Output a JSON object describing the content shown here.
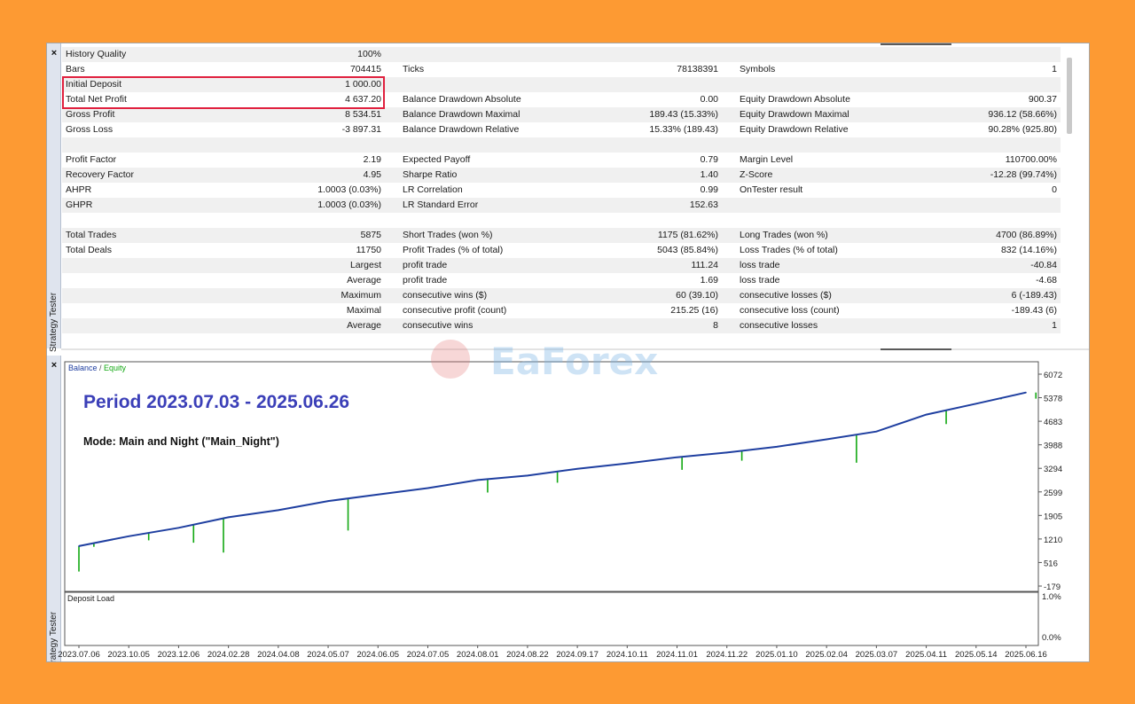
{
  "panel_title": "Strategy Tester",
  "close_icon": "×",
  "watermark_text": "EaForex",
  "report": {
    "rows": [
      {
        "l1": "History Quality",
        "v1": "100%",
        "l2": "",
        "v2": "",
        "l3": "",
        "v3": "",
        "quality_bar": true
      },
      {
        "l1": "Bars",
        "v1": "704415",
        "l2": "Ticks",
        "v2": "78138391",
        "l3": "Symbols",
        "v3": "1"
      },
      {
        "l1": "Initial Deposit",
        "v1": "1 000.00",
        "l2": "",
        "v2": "",
        "l3": "",
        "v3": ""
      },
      {
        "l1": "Total Net Profit",
        "v1": "4 637.20",
        "l2": "Balance Drawdown Absolute",
        "v2": "0.00",
        "l3": "Equity Drawdown Absolute",
        "v3": "900.37"
      },
      {
        "l1": "Gross Profit",
        "v1": "8 534.51",
        "l2": "Balance Drawdown Maximal",
        "v2": "189.43 (15.33%)",
        "l3": "Equity Drawdown Maximal",
        "v3": "936.12 (58.66%)"
      },
      {
        "l1": "Gross Loss",
        "v1": "-3 897.31",
        "l2": "Balance Drawdown Relative",
        "v2": "15.33% (189.43)",
        "l3": "Equity Drawdown Relative",
        "v3": "90.28% (925.80)"
      },
      {
        "l1": "",
        "v1": "",
        "l2": "",
        "v2": "",
        "l3": "",
        "v3": ""
      },
      {
        "l1": "Profit Factor",
        "v1": "2.19",
        "l2": "Expected Payoff",
        "v2": "0.79",
        "l3": "Margin Level",
        "v3": "110700.00%"
      },
      {
        "l1": "Recovery Factor",
        "v1": "4.95",
        "l2": "Sharpe Ratio",
        "v2": "1.40",
        "l3": "Z-Score",
        "v3": "-12.28 (99.74%)"
      },
      {
        "l1": "AHPR",
        "v1": "1.0003 (0.03%)",
        "l2": "LR Correlation",
        "v2": "0.99",
        "l3": "OnTester result",
        "v3": "0"
      },
      {
        "l1": "GHPR",
        "v1": "1.0003 (0.03%)",
        "l2": "LR Standard Error",
        "v2": "152.63",
        "l3": "",
        "v3": ""
      },
      {
        "l1": "",
        "v1": "",
        "l2": "",
        "v2": "",
        "l3": "",
        "v3": ""
      },
      {
        "l1": "Total Trades",
        "v1": "5875",
        "l2": "Short Trades (won %)",
        "v2": "1175 (81.62%)",
        "l3": "Long Trades (won %)",
        "v3": "4700 (86.89%)"
      },
      {
        "l1": "Total Deals",
        "v1": "11750",
        "l2": "Profit Trades (% of total)",
        "v2": "5043 (85.84%)",
        "l3": "Loss Trades (% of total)",
        "v3": "832 (14.16%)"
      },
      {
        "l1": "",
        "v1": "Largest",
        "l2": "profit trade",
        "v2": "111.24",
        "l3": "loss trade",
        "v3": "-40.84"
      },
      {
        "l1": "",
        "v1": "Average",
        "l2": "profit trade",
        "v2": "1.69",
        "l3": "loss trade",
        "v3": "-4.68"
      },
      {
        "l1": "",
        "v1": "Maximum",
        "l2": "consecutive wins ($)",
        "v2": "60 (39.10)",
        "l3": "consecutive losses ($)",
        "v3": "6 (-189.43)"
      },
      {
        "l1": "",
        "v1": "Maximal",
        "l2": "consecutive profit (count)",
        "v2": "215.25 (16)",
        "l3": "consecutive loss (count)",
        "v3": "-189.43 (6)"
      },
      {
        "l1": "",
        "v1": "Average",
        "l2": "consecutive wins",
        "v2": "8",
        "l3": "consecutive losses",
        "v3": "1"
      }
    ]
  },
  "chart_data": [
    {
      "type": "line",
      "legend": [
        "Balance",
        "Equity"
      ],
      "legend_separator": " / ",
      "annotations": [
        "Period 2023.07.03 - 2025.06.26",
        "Mode: Main and Night (\"Main_Night\")"
      ],
      "y_ticks": [
        "6072",
        "5378",
        "4683",
        "3988",
        "3294",
        "2599",
        "1905",
        "1210",
        "516",
        "-179"
      ],
      "ylim": [
        -179,
        6072
      ],
      "x_ticks": [
        "2023.07.06",
        "2023.10.05",
        "2023.12.06",
        "2024.02.28",
        "2024.04.08",
        "2024.05.07",
        "2024.06.05",
        "2024.07.05",
        "2024.08.01",
        "2024.08.22",
        "2024.09.17",
        "2024.10.11",
        "2024.11.01",
        "2024.11.22",
        "2025.01.10",
        "2025.02.04",
        "2025.03.07",
        "2025.04.11",
        "2025.05.14",
        "2025.06.16"
      ],
      "colors": {
        "balance": "#1f3fa0",
        "equity": "#12a812",
        "title": "#3b3fb8"
      },
      "series": [
        {
          "name": "Balance",
          "x_index": [
            0,
            1,
            2,
            3,
            4,
            5,
            6,
            7,
            8,
            9,
            10,
            11,
            12,
            13,
            14,
            15,
            16,
            17,
            18,
            19
          ],
          "values": [
            1000,
            1290,
            1540,
            1850,
            2060,
            2330,
            2520,
            2710,
            2950,
            3080,
            3280,
            3440,
            3620,
            3760,
            3930,
            4150,
            4380,
            4880,
            5200,
            5530
          ]
        },
        {
          "name": "Equity dips",
          "x_index": [
            0,
            0.3,
            1.4,
            2.3,
            2.9,
            5.4,
            8.2,
            9.6,
            12.1,
            13.3,
            15.6,
            17.4,
            18.5,
            19.2
          ],
          "values": [
            250,
            980,
            1170,
            1100,
            810,
            1460,
            2580,
            2870,
            3250,
            3520,
            3460,
            4600,
            5330,
            5350
          ]
        }
      ]
    },
    {
      "type": "line",
      "title": "Deposit Load",
      "y_ticks": [
        "1.0%",
        "0.0%"
      ],
      "ylim": [
        0,
        1
      ]
    }
  ]
}
